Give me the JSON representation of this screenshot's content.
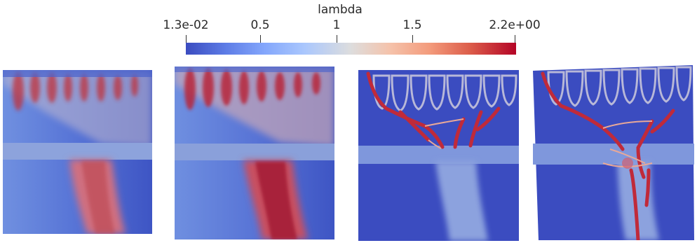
{
  "colorbar": {
    "title": "lambda",
    "tick_labels": [
      "1.3e-02",
      "0.5",
      "1",
      "1.5",
      "2.2e+00"
    ],
    "colormap": "cool-to-warm",
    "colors": [
      "#3b4cc0",
      "#dddddd",
      "#b40426"
    ]
  },
  "panels": [
    {
      "name": "panel-1",
      "description": "blurred field with faint fingers and lower red band"
    },
    {
      "name": "panel-2",
      "description": "stronger red fingers and band"
    },
    {
      "name": "panel-3",
      "description": "sharp branching veins into central column"
    },
    {
      "name": "panel-4",
      "description": "distorted mesh with branching vein tree"
    }
  ]
}
